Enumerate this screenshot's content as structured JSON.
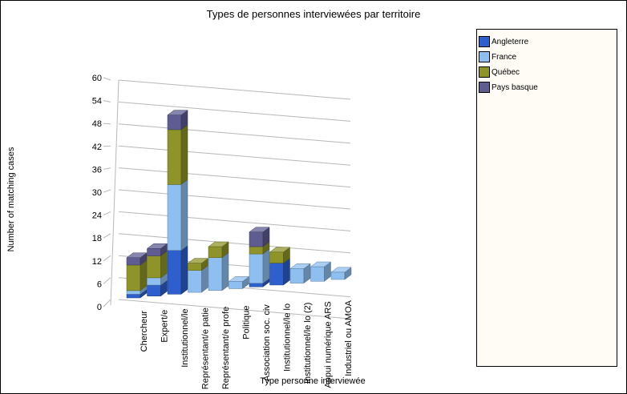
{
  "chart_data": {
    "type": "bar",
    "stacked": true,
    "three_d": true,
    "title": "Types de personnes interviewées par territoire",
    "xlabel": "Type personne interviewée",
    "ylabel": "Number of matching cases",
    "ylim": [
      0,
      60
    ],
    "yticks": [
      0,
      6,
      12,
      18,
      24,
      30,
      36,
      42,
      48,
      54,
      60
    ],
    "categories": [
      "Chercheur",
      "Expert/e",
      "Institutionnel/le",
      "Représentant/e patie",
      "Représentant/e profe",
      "Politique",
      "Association soc. civ",
      "Institutionnel/le lo",
      "Institutionnel/le lo (2)",
      "Appui numérique ARS",
      "Industriel ou AMOA"
    ],
    "series": [
      {
        "name": "Angleterre",
        "color": "#2e5fcc",
        "values": [
          1,
          3,
          12,
          0,
          0,
          0,
          1,
          6,
          0,
          0,
          0
        ]
      },
      {
        "name": "France",
        "color": "#8fbff0",
        "values": [
          1,
          2,
          18,
          6,
          9,
          2,
          8,
          0,
          4,
          4,
          2
        ]
      },
      {
        "name": "Québec",
        "color": "#8f942a",
        "values": [
          7,
          6,
          15,
          2,
          3,
          0,
          2,
          3,
          0,
          0,
          0
        ]
      },
      {
        "name": "Pays basque",
        "color": "#5e5c91",
        "values": [
          2,
          2,
          4,
          0,
          0,
          0,
          4,
          0,
          0,
          0,
          0
        ]
      }
    ],
    "grid": true,
    "legend_position": "right"
  }
}
